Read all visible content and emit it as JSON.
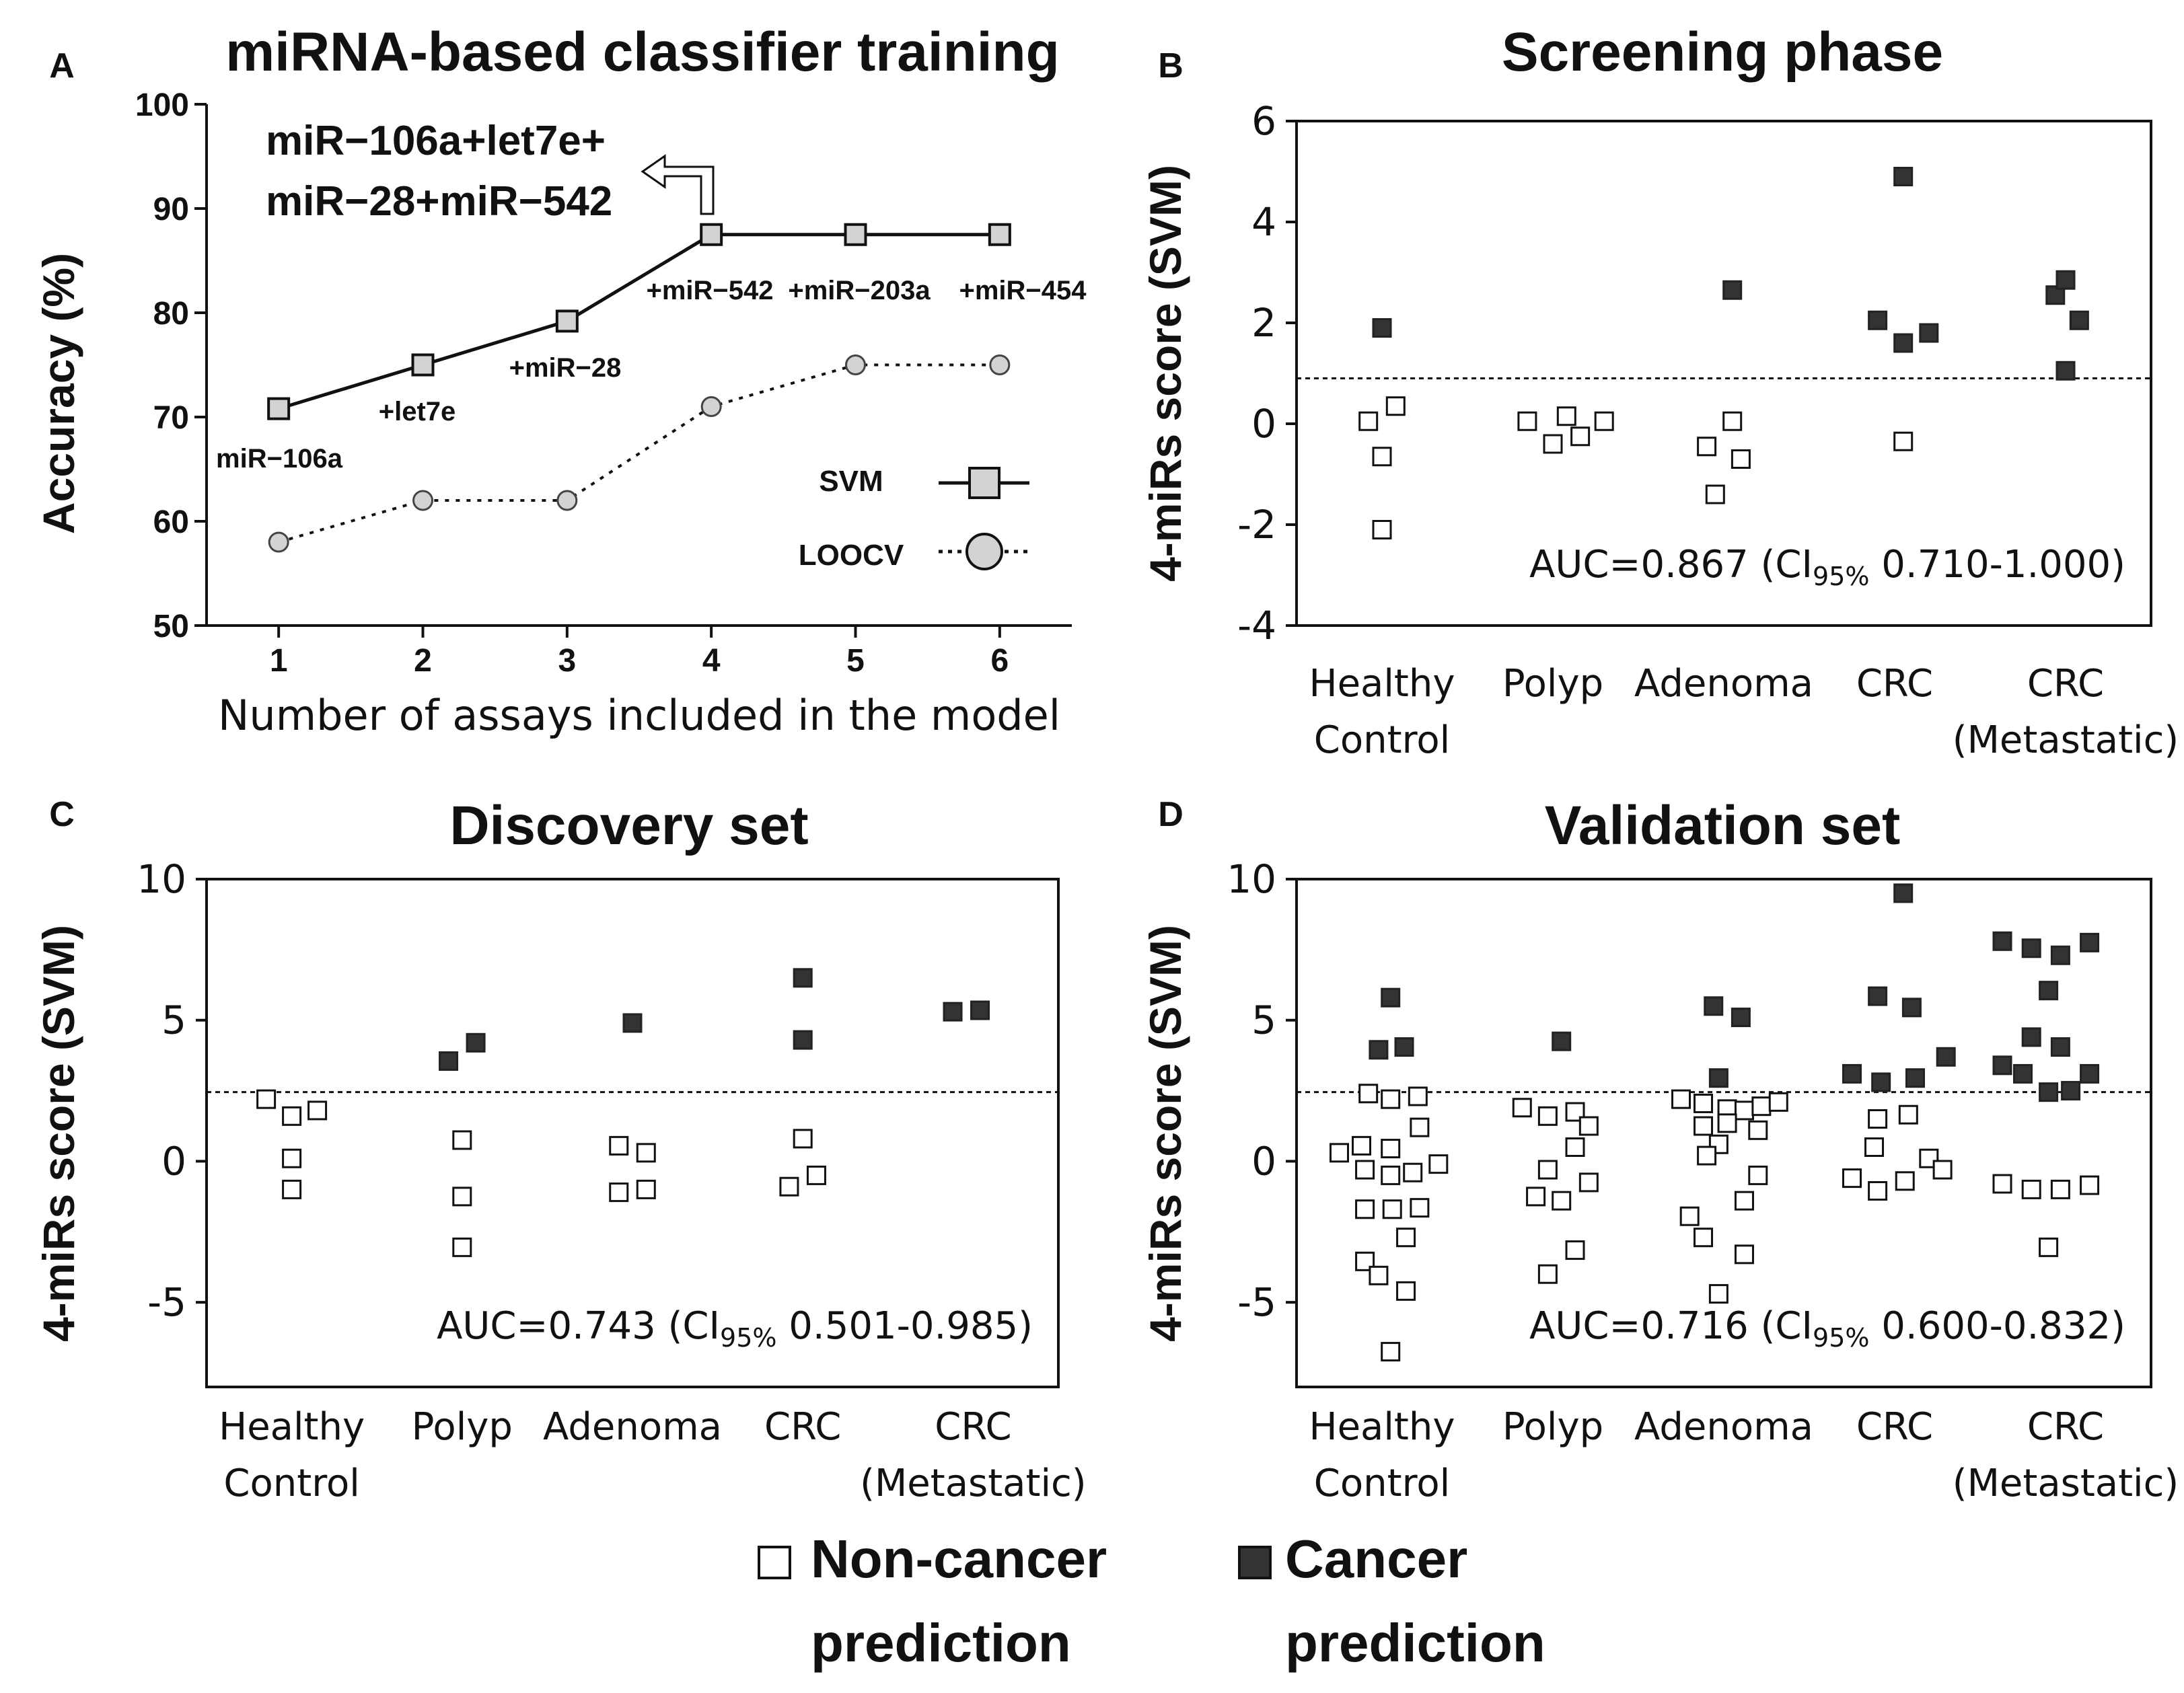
{
  "legend": {
    "noncancer_line1": "Non-cancer",
    "noncancer_line2": "prediction",
    "cancer_line1": "Cancer",
    "cancer_line2": "prediction"
  },
  "colors": {
    "noncancer_fill": "#ffffff",
    "cancer_fill": "#333333",
    "svm_fill": "#d3d3d3",
    "loocv_fill": "#d3d3d3",
    "line": "#111111"
  },
  "chart_data": [
    {
      "panel": "A",
      "type": "line",
      "title": "miRNA-based classifier training",
      "xlabel": "Number of assays included in the model",
      "ylabel": "Accuracy (%)",
      "x": [
        1,
        2,
        3,
        4,
        5,
        6
      ],
      "xlim": [
        0.5,
        6.5
      ],
      "ylim": [
        50,
        100
      ],
      "yticks": [
        50,
        60,
        70,
        80,
        90,
        100
      ],
      "series": [
        {
          "name": "SVM",
          "values": [
            70.8,
            75.0,
            79.2,
            87.5,
            87.5,
            87.5
          ]
        },
        {
          "name": "LOOCV",
          "values": [
            58.0,
            62.0,
            62.0,
            71.0,
            75.0,
            75.0
          ]
        }
      ],
      "point_labels": [
        "miR−106a",
        "+let7e",
        "+miR−28",
        "+miR−542",
        "+miR−203a",
        "+miR−454"
      ],
      "annotation_line1": "miR−106a+let7e+",
      "annotation_line2": "miR−28+miR−542"
    },
    {
      "panel": "B",
      "type": "scatter",
      "title": "Screening phase",
      "ylabel": "4-miRs score (SVM)",
      "categories": [
        [
          "Healthy",
          "Control"
        ],
        [
          "Polyp"
        ],
        [
          "Adenoma"
        ],
        [
          "CRC"
        ],
        [
          "CRC",
          "(Metastatic)"
        ]
      ],
      "ylim": [
        -4,
        6
      ],
      "yticks": [
        -4,
        -2,
        0,
        2,
        4,
        6
      ],
      "threshold": 0.9,
      "auc_prefix": "AUC=0.867 (CI",
      "auc_sub": "95%",
      "auc_suffix": " 0.710-1.000)",
      "points": [
        {
          "c": 0,
          "dx": 0.0,
          "y": 1.9,
          "p": 1
        },
        {
          "c": 0,
          "dx": -0.08,
          "y": 0.05,
          "p": 0
        },
        {
          "c": 0,
          "dx": 0.08,
          "y": 0.35,
          "p": 0
        },
        {
          "c": 0,
          "dx": 0.0,
          "y": -0.65,
          "p": 0
        },
        {
          "c": 0,
          "dx": 0.0,
          "y": -2.1,
          "p": 0
        },
        {
          "c": 1,
          "dx": -0.15,
          "y": 0.05,
          "p": 0
        },
        {
          "c": 1,
          "dx": 0.0,
          "y": -0.4,
          "p": 0
        },
        {
          "c": 1,
          "dx": 0.08,
          "y": 0.15,
          "p": 0
        },
        {
          "c": 1,
          "dx": 0.16,
          "y": -0.25,
          "p": 0
        },
        {
          "c": 1,
          "dx": 0.3,
          "y": 0.05,
          "p": 0
        },
        {
          "c": 2,
          "dx": 0.05,
          "y": 2.65,
          "p": 1
        },
        {
          "c": 2,
          "dx": 0.05,
          "y": 0.05,
          "p": 0
        },
        {
          "c": 2,
          "dx": -0.1,
          "y": -0.45,
          "p": 0
        },
        {
          "c": 2,
          "dx": 0.1,
          "y": -0.7,
          "p": 0
        },
        {
          "c": 2,
          "dx": -0.05,
          "y": -1.4,
          "p": 0
        },
        {
          "c": 3,
          "dx": 0.05,
          "y": 4.9,
          "p": 1
        },
        {
          "c": 3,
          "dx": -0.1,
          "y": 2.05,
          "p": 1
        },
        {
          "c": 3,
          "dx": 0.05,
          "y": 1.6,
          "p": 1
        },
        {
          "c": 3,
          "dx": 0.2,
          "y": 1.8,
          "p": 1
        },
        {
          "c": 3,
          "dx": 0.05,
          "y": -0.35,
          "p": 0
        },
        {
          "c": 4,
          "dx": -0.06,
          "y": 2.55,
          "p": 1
        },
        {
          "c": 4,
          "dx": 0.0,
          "y": 2.85,
          "p": 1
        },
        {
          "c": 4,
          "dx": 0.08,
          "y": 2.05,
          "p": 1
        },
        {
          "c": 4,
          "dx": 0.0,
          "y": 1.05,
          "p": 1
        }
      ]
    },
    {
      "panel": "C",
      "type": "scatter",
      "title": "Discovery set",
      "ylabel": "4-miRs score (SVM)",
      "categories": [
        [
          "Healthy",
          "Control"
        ],
        [
          "Polyp"
        ],
        [
          "Adenoma"
        ],
        [
          "CRC"
        ],
        [
          "CRC",
          "(Metastatic)"
        ]
      ],
      "ylim": [
        -8,
        10
      ],
      "yticks": [
        -5,
        0,
        5,
        10
      ],
      "threshold": 2.45,
      "auc_prefix": "AUC=0.743 (CI",
      "auc_sub": "95%",
      "auc_suffix": " 0.501-0.985)",
      "points": [
        {
          "c": 0,
          "dx": -0.15,
          "y": 2.2,
          "p": 0
        },
        {
          "c": 0,
          "dx": 0.0,
          "y": 1.6,
          "p": 0
        },
        {
          "c": 0,
          "dx": 0.15,
          "y": 1.8,
          "p": 0
        },
        {
          "c": 0,
          "dx": 0.0,
          "y": 0.1,
          "p": 0
        },
        {
          "c": 0,
          "dx": 0.0,
          "y": -1.0,
          "p": 0
        },
        {
          "c": 1,
          "dx": -0.08,
          "y": 3.55,
          "p": 1
        },
        {
          "c": 1,
          "dx": 0.08,
          "y": 4.2,
          "p": 1
        },
        {
          "c": 1,
          "dx": 0.0,
          "y": 0.75,
          "p": 0
        },
        {
          "c": 1,
          "dx": 0.0,
          "y": -1.25,
          "p": 0
        },
        {
          "c": 1,
          "dx": 0.0,
          "y": -3.05,
          "p": 0
        },
        {
          "c": 2,
          "dx": 0.0,
          "y": 4.9,
          "p": 1
        },
        {
          "c": 2,
          "dx": -0.08,
          "y": 0.55,
          "p": 0
        },
        {
          "c": 2,
          "dx": 0.08,
          "y": 0.3,
          "p": 0
        },
        {
          "c": 2,
          "dx": -0.08,
          "y": -1.1,
          "p": 0
        },
        {
          "c": 2,
          "dx": 0.08,
          "y": -1.0,
          "p": 0
        },
        {
          "c": 3,
          "dx": 0.0,
          "y": 6.5,
          "p": 1
        },
        {
          "c": 3,
          "dx": 0.0,
          "y": 4.3,
          "p": 1
        },
        {
          "c": 3,
          "dx": 0.0,
          "y": 0.8,
          "p": 0
        },
        {
          "c": 3,
          "dx": -0.08,
          "y": -0.9,
          "p": 0
        },
        {
          "c": 3,
          "dx": 0.08,
          "y": -0.5,
          "p": 0
        },
        {
          "c": 4,
          "dx": -0.12,
          "y": 5.3,
          "p": 1
        },
        {
          "c": 4,
          "dx": 0.04,
          "y": 5.35,
          "p": 1
        }
      ]
    },
    {
      "panel": "D",
      "type": "scatter",
      "title": "Validation set",
      "ylabel": "4-miRs score (SVM)",
      "categories": [
        [
          "Healthy",
          "Control"
        ],
        [
          "Polyp"
        ],
        [
          "Adenoma"
        ],
        [
          "CRC"
        ],
        [
          "CRC",
          "(Metastatic)"
        ]
      ],
      "ylim": [
        -8,
        10
      ],
      "yticks": [
        -5,
        0,
        5,
        10
      ],
      "threshold": 2.45,
      "auc_prefix": "AUC=0.716 (CI",
      "auc_sub": "95%",
      "auc_suffix": " 0.600-0.832)",
      "points": [
        {
          "c": 0,
          "dx": 0.05,
          "y": 5.8,
          "p": 1
        },
        {
          "c": 0,
          "dx": -0.02,
          "y": 3.95,
          "p": 1
        },
        {
          "c": 0,
          "dx": 0.13,
          "y": 4.05,
          "p": 1
        },
        {
          "c": 0,
          "dx": -0.08,
          "y": 2.4,
          "p": 0
        },
        {
          "c": 0,
          "dx": 0.05,
          "y": 2.2,
          "p": 0
        },
        {
          "c": 0,
          "dx": 0.21,
          "y": 2.3,
          "p": 0
        },
        {
          "c": 0,
          "dx": 0.22,
          "y": 1.2,
          "p": 0
        },
        {
          "c": 0,
          "dx": -0.25,
          "y": 0.3,
          "p": 0
        },
        {
          "c": 0,
          "dx": -0.12,
          "y": 0.55,
          "p": 0
        },
        {
          "c": 0,
          "dx": 0.05,
          "y": 0.45,
          "p": 0
        },
        {
          "c": 0,
          "dx": 0.33,
          "y": -0.1,
          "p": 0
        },
        {
          "c": 0,
          "dx": -0.1,
          "y": -0.3,
          "p": 0
        },
        {
          "c": 0,
          "dx": 0.05,
          "y": -0.5,
          "p": 0
        },
        {
          "c": 0,
          "dx": 0.18,
          "y": -0.4,
          "p": 0
        },
        {
          "c": 0,
          "dx": -0.1,
          "y": -1.7,
          "p": 0
        },
        {
          "c": 0,
          "dx": 0.06,
          "y": -1.7,
          "p": 0
        },
        {
          "c": 0,
          "dx": 0.22,
          "y": -1.65,
          "p": 0
        },
        {
          "c": 0,
          "dx": 0.14,
          "y": -2.7,
          "p": 0
        },
        {
          "c": 0,
          "dx": -0.1,
          "y": -3.55,
          "p": 0
        },
        {
          "c": 0,
          "dx": -0.02,
          "y": -4.05,
          "p": 0
        },
        {
          "c": 0,
          "dx": 0.14,
          "y": -4.6,
          "p": 0
        },
        {
          "c": 0,
          "dx": 0.05,
          "y": -6.75,
          "p": 0
        },
        {
          "c": 1,
          "dx": 0.05,
          "y": 4.25,
          "p": 1
        },
        {
          "c": 1,
          "dx": -0.18,
          "y": 1.9,
          "p": 0
        },
        {
          "c": 1,
          "dx": -0.03,
          "y": 1.6,
          "p": 0
        },
        {
          "c": 1,
          "dx": 0.13,
          "y": 1.75,
          "p": 0
        },
        {
          "c": 1,
          "dx": 0.21,
          "y": 1.25,
          "p": 0
        },
        {
          "c": 1,
          "dx": 0.13,
          "y": 0.5,
          "p": 0
        },
        {
          "c": 1,
          "dx": -0.03,
          "y": -0.3,
          "p": 0
        },
        {
          "c": 1,
          "dx": 0.21,
          "y": -0.75,
          "p": 0
        },
        {
          "c": 1,
          "dx": -0.1,
          "y": -1.25,
          "p": 0
        },
        {
          "c": 1,
          "dx": 0.05,
          "y": -1.4,
          "p": 0
        },
        {
          "c": 1,
          "dx": 0.13,
          "y": -3.15,
          "p": 0
        },
        {
          "c": 1,
          "dx": -0.03,
          "y": -4.0,
          "p": 0
        },
        {
          "c": 2,
          "dx": -0.06,
          "y": 5.5,
          "p": 1
        },
        {
          "c": 2,
          "dx": 0.1,
          "y": 5.1,
          "p": 1
        },
        {
          "c": 2,
          "dx": -0.03,
          "y": 2.95,
          "p": 1
        },
        {
          "c": 2,
          "dx": -0.25,
          "y": 2.2,
          "p": 0
        },
        {
          "c": 2,
          "dx": -0.12,
          "y": 2.05,
          "p": 0
        },
        {
          "c": 2,
          "dx": 0.02,
          "y": 1.85,
          "p": 0
        },
        {
          "c": 2,
          "dx": 0.12,
          "y": 1.8,
          "p": 0
        },
        {
          "c": 2,
          "dx": 0.22,
          "y": 1.95,
          "p": 0
        },
        {
          "c": 2,
          "dx": 0.32,
          "y": 2.1,
          "p": 0
        },
        {
          "c": 2,
          "dx": -0.12,
          "y": 1.25,
          "p": 0
        },
        {
          "c": 2,
          "dx": 0.02,
          "y": 1.35,
          "p": 0
        },
        {
          "c": 2,
          "dx": 0.2,
          "y": 1.1,
          "p": 0
        },
        {
          "c": 2,
          "dx": -0.03,
          "y": 0.6,
          "p": 0
        },
        {
          "c": 2,
          "dx": -0.1,
          "y": 0.2,
          "p": 0
        },
        {
          "c": 2,
          "dx": 0.2,
          "y": -0.5,
          "p": 0
        },
        {
          "c": 2,
          "dx": 0.12,
          "y": -1.4,
          "p": 0
        },
        {
          "c": 2,
          "dx": -0.2,
          "y": -1.95,
          "p": 0
        },
        {
          "c": 2,
          "dx": -0.12,
          "y": -2.7,
          "p": 0
        },
        {
          "c": 2,
          "dx": 0.12,
          "y": -3.3,
          "p": 0
        },
        {
          "c": 2,
          "dx": -0.03,
          "y": -4.7,
          "p": 0
        },
        {
          "c": 3,
          "dx": 0.05,
          "y": 9.5,
          "p": 1
        },
        {
          "c": 3,
          "dx": -0.1,
          "y": 5.85,
          "p": 1
        },
        {
          "c": 3,
          "dx": 0.1,
          "y": 5.45,
          "p": 1
        },
        {
          "c": 3,
          "dx": 0.3,
          "y": 3.7,
          "p": 1
        },
        {
          "c": 3,
          "dx": -0.25,
          "y": 3.1,
          "p": 1
        },
        {
          "c": 3,
          "dx": -0.08,
          "y": 2.8,
          "p": 1
        },
        {
          "c": 3,
          "dx": 0.12,
          "y": 2.95,
          "p": 1
        },
        {
          "c": 3,
          "dx": -0.1,
          "y": 1.5,
          "p": 0
        },
        {
          "c": 3,
          "dx": 0.08,
          "y": 1.65,
          "p": 0
        },
        {
          "c": 3,
          "dx": -0.12,
          "y": 0.5,
          "p": 0
        },
        {
          "c": 3,
          "dx": 0.2,
          "y": 0.1,
          "p": 0
        },
        {
          "c": 3,
          "dx": 0.28,
          "y": -0.3,
          "p": 0
        },
        {
          "c": 3,
          "dx": -0.25,
          "y": -0.6,
          "p": 0
        },
        {
          "c": 3,
          "dx": 0.06,
          "y": -0.7,
          "p": 0
        },
        {
          "c": 3,
          "dx": -0.1,
          "y": -1.05,
          "p": 0
        },
        {
          "c": 4,
          "dx": -0.37,
          "y": 7.8,
          "p": 1
        },
        {
          "c": 4,
          "dx": -0.2,
          "y": 7.55,
          "p": 1
        },
        {
          "c": 4,
          "dx": -0.03,
          "y": 7.3,
          "p": 1
        },
        {
          "c": 4,
          "dx": 0.14,
          "y": 7.75,
          "p": 1
        },
        {
          "c": 4,
          "dx": -0.1,
          "y": 6.05,
          "p": 1
        },
        {
          "c": 4,
          "dx": -0.2,
          "y": 4.4,
          "p": 1
        },
        {
          "c": 4,
          "dx": -0.03,
          "y": 4.05,
          "p": 1
        },
        {
          "c": 4,
          "dx": -0.37,
          "y": 3.4,
          "p": 1
        },
        {
          "c": 4,
          "dx": -0.25,
          "y": 3.1,
          "p": 1
        },
        {
          "c": 4,
          "dx": -0.1,
          "y": 2.45,
          "p": 1
        },
        {
          "c": 4,
          "dx": 0.03,
          "y": 2.5,
          "p": 1
        },
        {
          "c": 4,
          "dx": 0.14,
          "y": 3.1,
          "p": 1
        },
        {
          "c": 4,
          "dx": -0.37,
          "y": -0.8,
          "p": 0
        },
        {
          "c": 4,
          "dx": -0.2,
          "y": -1.0,
          "p": 0
        },
        {
          "c": 4,
          "dx": -0.03,
          "y": -1.0,
          "p": 0
        },
        {
          "c": 4,
          "dx": 0.14,
          "y": -0.85,
          "p": 0
        },
        {
          "c": 4,
          "dx": -0.1,
          "y": -3.05,
          "p": 0
        }
      ]
    }
  ]
}
